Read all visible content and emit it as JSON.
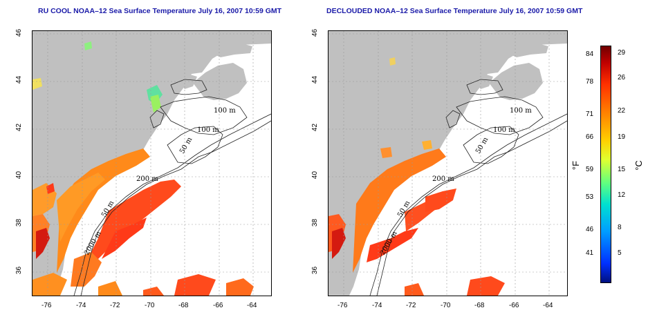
{
  "panels": [
    {
      "title": "RU COOL NOAA–12 Sea Surface Temperature July 16, 2007 10:59 GMT"
    },
    {
      "title": "DECLOUDED NOAA–12 Sea Surface Temperature July 16, 2007 10:59 GMT"
    }
  ],
  "map": {
    "lon_ticks": [
      "-76",
      "-74",
      "-72",
      "-70",
      "-68",
      "-66",
      "-64"
    ],
    "lat_ticks": [
      "36",
      "38",
      "40",
      "42",
      "44",
      "46"
    ],
    "contour_labels": [
      "100 m",
      "100 m",
      "50 m",
      "200 m",
      "50 m",
      "2000 m"
    ]
  },
  "colorbar": {
    "f_labels": [
      "84",
      "78",
      "71",
      "66",
      "59",
      "53",
      "46",
      "41"
    ],
    "c_labels": [
      "29",
      "26",
      "22",
      "19",
      "15",
      "12",
      "8",
      "5"
    ],
    "f_unit": "°F",
    "c_unit": "°C",
    "colors": [
      "#001080",
      "#0030ff",
      "#00a0ff",
      "#00e0d0",
      "#60ff80",
      "#e0ff30",
      "#ffd000",
      "#ff8000",
      "#ff3000",
      "#c00000",
      "#700000"
    ]
  }
}
